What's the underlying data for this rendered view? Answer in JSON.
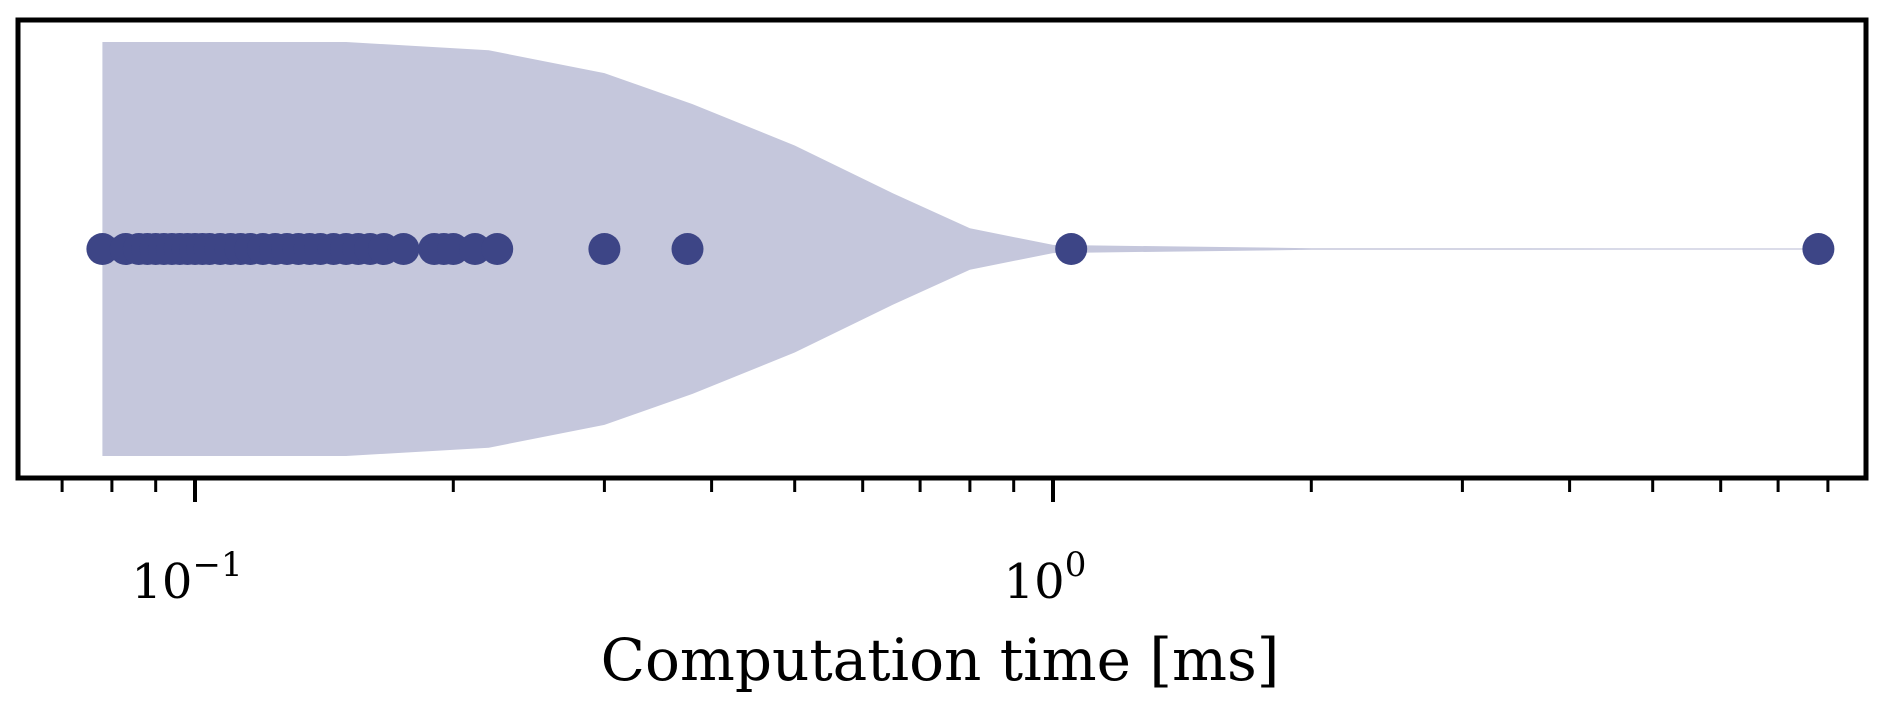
{
  "chart_data": {
    "type": "violin",
    "orientation": "horizontal",
    "xscale": "log",
    "xlim": [
      0.07,
      10
    ],
    "xlabel": "Computation time [ms]",
    "major_ticks": [
      {
        "value": 0.1,
        "base": "10",
        "exponent": "−1"
      },
      {
        "value": 1,
        "base": "10",
        "exponent": "0"
      }
    ],
    "points": [
      0.078,
      0.083,
      0.086,
      0.088,
      0.09,
      0.092,
      0.094,
      0.096,
      0.098,
      0.1,
      0.102,
      0.104,
      0.107,
      0.11,
      0.113,
      0.116,
      0.12,
      0.124,
      0.128,
      0.132,
      0.136,
      0.14,
      0.145,
      0.15,
      0.155,
      0.16,
      0.166,
      0.175,
      0.19,
      0.195,
      0.2,
      0.212,
      0.225,
      0.3,
      0.375,
      1.05,
      7.8
    ],
    "density_profile": [
      {
        "x": 0.078,
        "w": 1.0
      },
      {
        "x": 0.11,
        "w": 1.0
      },
      {
        "x": 0.15,
        "w": 1.0
      },
      {
        "x": 0.22,
        "w": 0.96
      },
      {
        "x": 0.3,
        "w": 0.85
      },
      {
        "x": 0.38,
        "w": 0.7
      },
      {
        "x": 0.5,
        "w": 0.5
      },
      {
        "x": 0.65,
        "w": 0.27
      },
      {
        "x": 0.8,
        "w": 0.1
      },
      {
        "x": 1.0,
        "w": 0.02
      },
      {
        "x": 2.0,
        "w": 0.004
      },
      {
        "x": 7.8,
        "w": 0.002
      }
    ],
    "colors": {
      "violin_fill": "#c5c7dc",
      "point": "#3d4586",
      "axes": "#000000"
    },
    "grid": false
  }
}
